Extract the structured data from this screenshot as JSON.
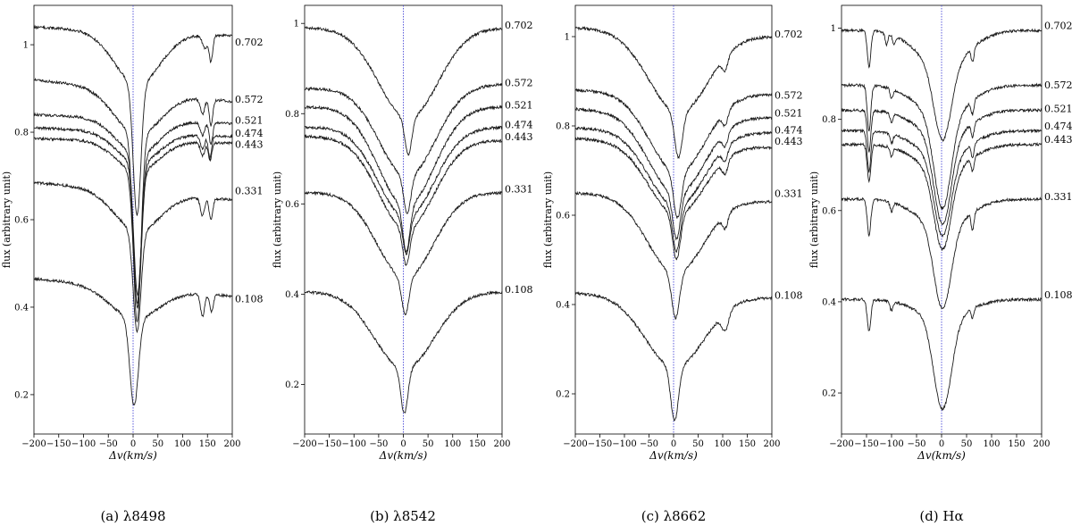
{
  "chart_data": [
    {
      "type": "line",
      "caption": "(a) λ8498",
      "xlabel": "Δv(km/s)",
      "ylabel": "flux (arbitrary unit)",
      "xlim": [
        -200,
        200
      ],
      "ylim": [
        0.11,
        1.09
      ],
      "xticks": [
        -200,
        -150,
        -100,
        -50,
        0,
        50,
        100,
        150,
        200
      ],
      "yticks": [
        0.2,
        0.4,
        0.6,
        0.8,
        1.0
      ],
      "line_center": 0,
      "series": [
        {
          "name": "0.702",
          "baseline": 1.03,
          "center": 8,
          "depth": 0.3,
          "width": 11,
          "wing_depth": 0.12,
          "wing_width": 65,
          "slope": -0.01,
          "blends": [
            {
              "x": 145,
              "d": 0.03,
              "w": 7
            },
            {
              "x": 157,
              "d": 0.06,
              "w": 5
            }
          ],
          "label_y": 1.005
        },
        {
          "name": "0.572",
          "baseline": 0.895,
          "center": 8,
          "depth": 0.43,
          "width": 11,
          "wing_depth": 0.1,
          "wing_width": 65,
          "slope": -0.025,
          "blends": [
            {
              "x": 140,
              "d": 0.035,
              "w": 6
            },
            {
              "x": 157,
              "d": 0.06,
              "w": 5
            }
          ],
          "label_y": 0.875
        },
        {
          "name": "0.521",
          "baseline": 0.83,
          "center": 9,
          "depth": 0.32,
          "width": 11,
          "wing_depth": 0.08,
          "wing_width": 60,
          "slope": -0.01,
          "blends": [
            {
              "x": 140,
              "d": 0.03,
              "w": 6
            },
            {
              "x": 157,
              "d": 0.05,
              "w": 5
            }
          ],
          "label_y": 0.827
        },
        {
          "name": "0.474",
          "baseline": 0.8,
          "center": 9,
          "depth": 0.33,
          "width": 11,
          "wing_depth": 0.07,
          "wing_width": 60,
          "slope": -0.01,
          "blends": [
            {
              "x": 140,
              "d": 0.03,
              "w": 6
            },
            {
              "x": 155,
              "d": 0.05,
              "w": 5
            }
          ],
          "label_y": 0.797
        },
        {
          "name": "0.443",
          "baseline": 0.78,
          "center": 8,
          "depth": 0.3,
          "width": 11,
          "wing_depth": 0.07,
          "wing_width": 60,
          "slope": -0.005,
          "blends": [
            {
              "x": 140,
              "d": 0.03,
              "w": 6
            },
            {
              "x": 155,
              "d": 0.04,
              "w": 5
            }
          ],
          "label_y": 0.772
        },
        {
          "name": "0.331",
          "baseline": 0.665,
          "center": 8,
          "depth": 0.23,
          "width": 11,
          "wing_depth": 0.09,
          "wing_width": 65,
          "slope": -0.02,
          "blends": [
            {
              "x": 140,
              "d": 0.04,
              "w": 6
            },
            {
              "x": 157,
              "d": 0.05,
              "w": 5
            }
          ],
          "label_y": 0.665
        },
        {
          "name": "0.108",
          "baseline": 0.445,
          "center": 2,
          "depth": 0.2,
          "width": 12,
          "wing_depth": 0.07,
          "wing_width": 70,
          "slope": -0.02,
          "blends": [
            {
              "x": 140,
              "d": 0.05,
              "w": 6
            },
            {
              "x": 158,
              "d": 0.04,
              "w": 5
            }
          ],
          "label_y": 0.418
        }
      ]
    },
    {
      "type": "line",
      "caption": "(b) λ8542",
      "xlabel": "Δv(km/s)",
      "ylabel": "flux (arbitrary unit)",
      "xlim": [
        -200,
        200
      ],
      "ylim": [
        0.09,
        1.04
      ],
      "xticks": [
        -200,
        -150,
        -100,
        -50,
        0,
        50,
        100,
        150,
        200
      ],
      "yticks": [
        0.2,
        0.4,
        0.6,
        0.8,
        1.0
      ],
      "line_center": 0,
      "series": [
        {
          "name": "0.702",
          "baseline": 0.99,
          "center": 10,
          "depth": 0.08,
          "width": 10,
          "wing_depth": 0.2,
          "wing_width": 85,
          "slope": 0.0,
          "blends": [],
          "label_y": 0.995
        },
        {
          "name": "0.572",
          "baseline": 0.86,
          "center": 8,
          "depth": 0.08,
          "width": 10,
          "wing_depth": 0.2,
          "wing_width": 80,
          "slope": 0.005,
          "blends": [],
          "label_y": 0.868
        },
        {
          "name": "0.521",
          "baseline": 0.815,
          "center": 6,
          "depth": 0.1,
          "width": 10,
          "wing_depth": 0.22,
          "wing_width": 80,
          "slope": 0.0,
          "blends": [],
          "label_y": 0.818
        },
        {
          "name": "0.474",
          "baseline": 0.77,
          "center": 6,
          "depth": 0.08,
          "width": 10,
          "wing_depth": 0.2,
          "wing_width": 80,
          "slope": 0.0,
          "blends": [],
          "label_y": 0.775
        },
        {
          "name": "0.443",
          "baseline": 0.745,
          "center": 6,
          "depth": 0.08,
          "width": 10,
          "wing_depth": 0.2,
          "wing_width": 80,
          "slope": -0.005,
          "blends": [],
          "label_y": 0.748
        },
        {
          "name": "0.331",
          "baseline": 0.625,
          "center": 4,
          "depth": 0.08,
          "width": 10,
          "wing_depth": 0.19,
          "wing_width": 80,
          "slope": 0.0,
          "blends": [],
          "label_y": 0.632
        },
        {
          "name": "0.108",
          "baseline": 0.405,
          "center": 2,
          "depth": 0.1,
          "width": 10,
          "wing_depth": 0.17,
          "wing_width": 85,
          "slope": 0.0,
          "blends": [],
          "label_y": 0.41
        }
      ]
    },
    {
      "type": "line",
      "caption": "(c) λ8662",
      "xlabel": "Δv(km/s)",
      "ylabel": "flux (arbitrary unit)",
      "xlim": [
        -200,
        200
      ],
      "ylim": [
        0.11,
        1.07
      ],
      "xticks": [
        -200,
        -150,
        -100,
        -50,
        0,
        50,
        100,
        150,
        200
      ],
      "yticks": [
        0.2,
        0.4,
        0.6,
        0.8,
        1.0
      ],
      "line_center": 0,
      "series": [
        {
          "name": "0.702",
          "baseline": 1.01,
          "center": 10,
          "depth": 0.1,
          "width": 11,
          "wing_depth": 0.18,
          "wing_width": 85,
          "slope": -0.01,
          "blends": [
            {
              "x": 105,
              "d": 0.03,
              "w": 8
            }
          ],
          "label_y": 1.005
        },
        {
          "name": "0.572",
          "baseline": 0.875,
          "center": 8,
          "depth": 0.1,
          "width": 11,
          "wing_depth": 0.18,
          "wing_width": 80,
          "slope": -0.005,
          "blends": [
            {
              "x": 105,
              "d": 0.03,
              "w": 8
            }
          ],
          "label_y": 0.868
        },
        {
          "name": "0.521",
          "baseline": 0.828,
          "center": 6,
          "depth": 0.1,
          "width": 11,
          "wing_depth": 0.18,
          "wing_width": 80,
          "slope": -0.01,
          "blends": [
            {
              "x": 105,
              "d": 0.03,
              "w": 8
            }
          ],
          "label_y": 0.828
        },
        {
          "name": "0.474",
          "baseline": 0.79,
          "center": 6,
          "depth": 0.1,
          "width": 11,
          "wing_depth": 0.17,
          "wing_width": 80,
          "slope": -0.005,
          "blends": [
            {
              "x": 105,
              "d": 0.03,
              "w": 8
            }
          ],
          "label_y": 0.79
        },
        {
          "name": "0.443",
          "baseline": 0.762,
          "center": 6,
          "depth": 0.1,
          "width": 11,
          "wing_depth": 0.16,
          "wing_width": 80,
          "slope": -0.01,
          "blends": [
            {
              "x": 105,
              "d": 0.03,
              "w": 8
            }
          ],
          "label_y": 0.765
        },
        {
          "name": "0.331",
          "baseline": 0.64,
          "center": 4,
          "depth": 0.1,
          "width": 11,
          "wing_depth": 0.17,
          "wing_width": 80,
          "slope": -0.01,
          "blends": [
            {
              "x": 105,
              "d": 0.03,
              "w": 8
            }
          ],
          "label_y": 0.648
        },
        {
          "name": "0.108",
          "baseline": 0.42,
          "center": 2,
          "depth": 0.12,
          "width": 11,
          "wing_depth": 0.16,
          "wing_width": 85,
          "slope": -0.005,
          "blends": [
            {
              "x": 105,
              "d": 0.04,
              "w": 10
            }
          ],
          "label_y": 0.42
        }
      ]
    },
    {
      "type": "line",
      "caption": "(d) Hα",
      "xlabel": "Δv(km/s)",
      "ylabel": "flux (arbitrary unit)",
      "xlim": [
        -200,
        200
      ],
      "ylim": [
        0.11,
        1.05
      ],
      "xticks": [
        -200,
        -150,
        -100,
        -50,
        0,
        50,
        100,
        150,
        200
      ],
      "yticks": [
        0.2,
        0.4,
        0.6,
        0.8,
        1.0
      ],
      "line_center": 0,
      "series": [
        {
          "name": "0.702",
          "baseline": 0.995,
          "center": 2,
          "depth": 0.16,
          "width": 24,
          "wing_depth": 0.08,
          "wing_width": 70,
          "slope": 0.0,
          "blends": [
            {
              "x": -145,
              "d": 0.08,
              "w": 5
            },
            {
              "x": -110,
              "d": 0.025,
              "w": 4
            },
            {
              "x": -95,
              "d": 0.02,
              "w": 4
            },
            {
              "x": 62,
              "d": 0.03,
              "w": 4
            }
          ],
          "label_y": 1.005
        },
        {
          "name": "0.572",
          "baseline": 0.875,
          "center": 2,
          "depth": 0.2,
          "width": 24,
          "wing_depth": 0.07,
          "wing_width": 70,
          "slope": 0.0,
          "blends": [
            {
              "x": -145,
              "d": 0.1,
              "w": 5
            },
            {
              "x": -100,
              "d": 0.02,
              "w": 4
            },
            {
              "x": 62,
              "d": 0.03,
              "w": 4
            }
          ],
          "label_y": 0.875
        },
        {
          "name": "0.521",
          "baseline": 0.82,
          "center": 2,
          "depth": 0.19,
          "width": 24,
          "wing_depth": 0.06,
          "wing_width": 70,
          "slope": 0.0,
          "blends": [
            {
              "x": -145,
              "d": 0.09,
              "w": 5
            },
            {
              "x": -100,
              "d": 0.02,
              "w": 4
            },
            {
              "x": 62,
              "d": 0.03,
              "w": 4
            }
          ],
          "label_y": 0.823
        },
        {
          "name": "0.474",
          "baseline": 0.775,
          "center": 2,
          "depth": 0.17,
          "width": 24,
          "wing_depth": 0.06,
          "wing_width": 70,
          "slope": 0.0,
          "blends": [
            {
              "x": -145,
              "d": 0.09,
              "w": 5
            },
            {
              "x": -100,
              "d": 0.02,
              "w": 4
            },
            {
              "x": 62,
              "d": 0.03,
              "w": 4
            }
          ],
          "label_y": 0.785
        },
        {
          "name": "0.443",
          "baseline": 0.745,
          "center": 2,
          "depth": 0.17,
          "width": 24,
          "wing_depth": 0.06,
          "wing_width": 70,
          "slope": 0.0,
          "blends": [
            {
              "x": -145,
              "d": 0.08,
              "w": 5
            },
            {
              "x": -100,
              "d": 0.02,
              "w": 4
            },
            {
              "x": 62,
              "d": 0.03,
              "w": 4
            }
          ],
          "label_y": 0.755
        },
        {
          "name": "0.331",
          "baseline": 0.625,
          "center": 2,
          "depth": 0.18,
          "width": 24,
          "wing_depth": 0.06,
          "wing_width": 70,
          "slope": 0.0,
          "blends": [
            {
              "x": -145,
              "d": 0.08,
              "w": 5
            },
            {
              "x": -100,
              "d": 0.02,
              "w": 4
            },
            {
              "x": 62,
              "d": 0.04,
              "w": 4
            }
          ],
          "label_y": 0.63
        },
        {
          "name": "0.108",
          "baseline": 0.405,
          "center": 2,
          "depth": 0.2,
          "width": 25,
          "wing_depth": 0.04,
          "wing_width": 70,
          "slope": 0.0,
          "blends": [
            {
              "x": -145,
              "d": 0.07,
              "w": 5
            },
            {
              "x": -100,
              "d": 0.02,
              "w": 4
            },
            {
              "x": 62,
              "d": 0.02,
              "w": 4
            }
          ],
          "label_y": 0.415
        }
      ]
    }
  ],
  "colors": {
    "spectrum_line": "#1a1a1a",
    "center_line": "#4a4ad8",
    "axes": "#000000"
  }
}
